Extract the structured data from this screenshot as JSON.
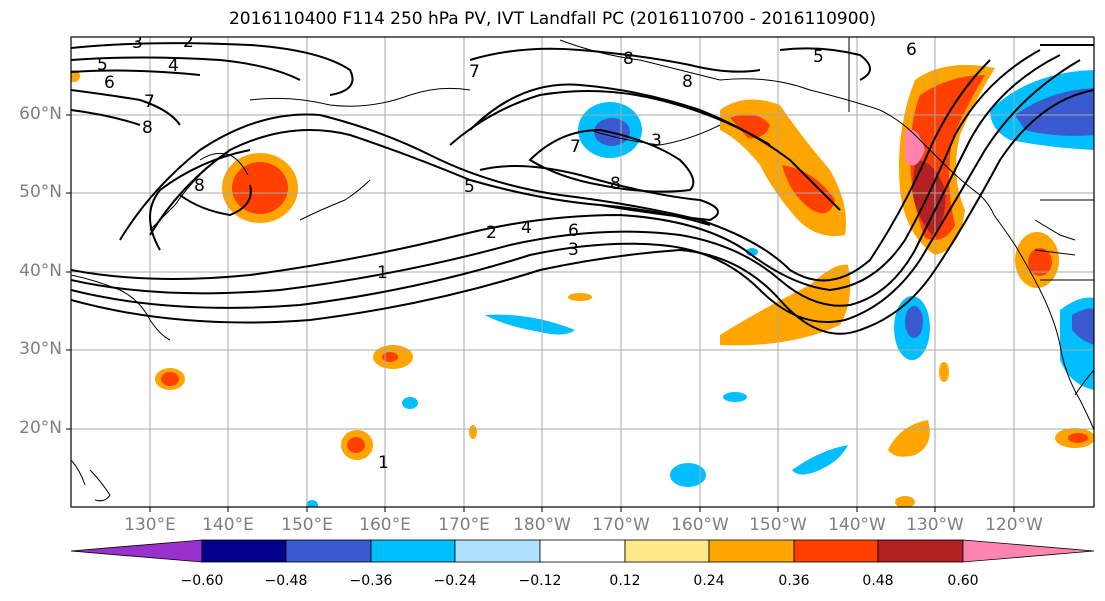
{
  "title": "2016110400 F114 250 hPa PV, IVT Landfall PC (2016110700 - 2016110900)",
  "lat_labels": [
    "60°N",
    "50°N",
    "40°N",
    "30°N",
    "20°N"
  ],
  "lon_labels": [
    "130°E",
    "140°E",
    "150°E",
    "160°E",
    "170°E",
    "180°W",
    "170°W",
    "160°W",
    "150°W",
    "140°W",
    "130°W",
    "120°W"
  ],
  "contour_labels": [
    "2",
    "3",
    "5",
    "4",
    "6",
    "7",
    "8",
    "8",
    "8",
    "1",
    "2",
    "3",
    "4",
    "5",
    "6",
    "7",
    "8",
    "3",
    "8",
    "5",
    "6",
    "7",
    "1"
  ],
  "colorbar": {
    "ticks": [
      "−0.60",
      "−0.48",
      "−0.36",
      "−0.24",
      "−0.12",
      "0.12",
      "0.24",
      "0.36",
      "0.48",
      "0.60"
    ],
    "colors": [
      "#9932cc",
      "#00008b",
      "#3a5bd0",
      "#00bfff",
      "#b0e2ff",
      "#ffffff",
      "#ffe98a",
      "#ffa500",
      "#ff4000",
      "#b22222",
      "#ff85b0"
    ]
  },
  "colors": {
    "frame": "#000000",
    "grid": "#a8a8a8",
    "tick_label": "#7f7f7f"
  }
}
